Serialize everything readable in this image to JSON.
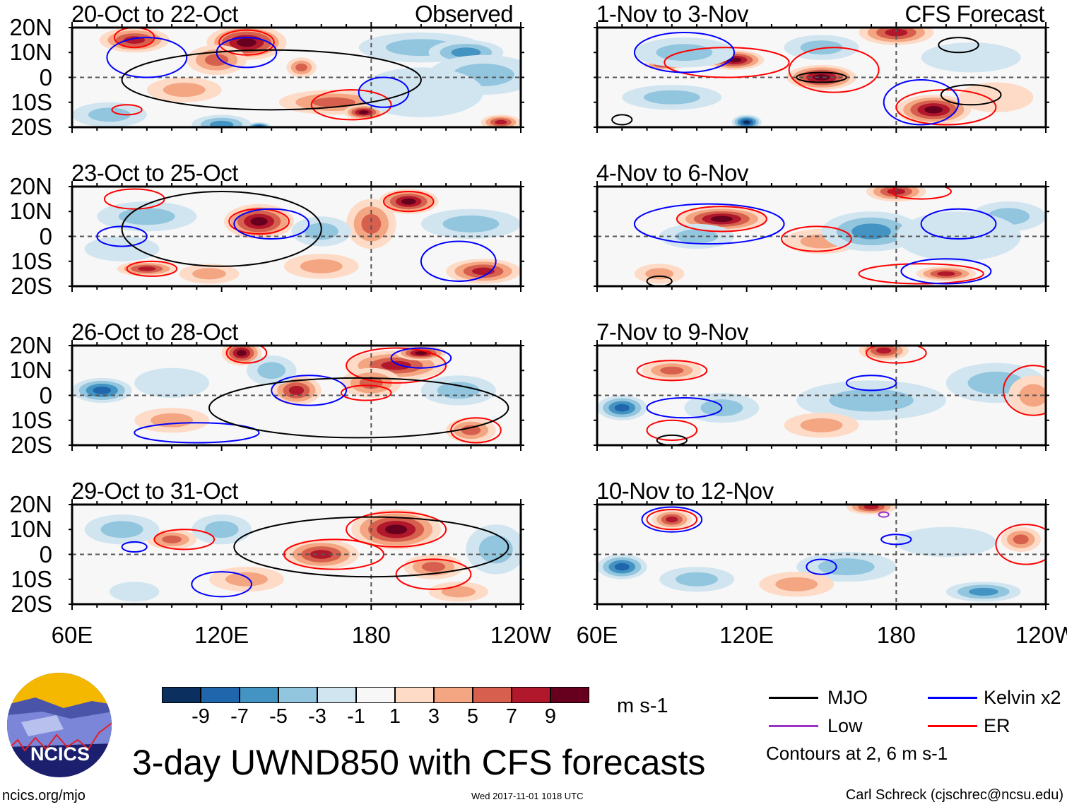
{
  "header": {
    "observed_label": "Observed",
    "forecast_label": "CFS Forecast"
  },
  "lat_labels": [
    "20N",
    "10N",
    "0",
    "10S",
    "20S"
  ],
  "lon_labels": [
    "60E",
    "120E",
    "180",
    "120W"
  ],
  "lon_values": [
    60,
    120,
    180,
    240
  ],
  "panels": [
    {
      "title": "20-Oct to 22-Oct",
      "anomalies": [
        [
          85,
          15,
          14,
          5,
          7
        ],
        [
          130,
          14,
          16,
          7,
          9
        ],
        [
          118,
          7,
          12,
          6,
          5
        ],
        [
          152,
          4,
          6,
          4,
          5
        ],
        [
          165,
          -10,
          22,
          5,
          5
        ],
        [
          177,
          -14,
          8,
          3,
          9
        ],
        [
          232,
          -18,
          8,
          3,
          7
        ],
        [
          200,
          12,
          25,
          6,
          -3
        ],
        [
          218,
          10,
          15,
          5,
          -5
        ],
        [
          225,
          1,
          22,
          8,
          -3
        ],
        [
          75,
          -15,
          15,
          5,
          -3
        ],
        [
          120,
          -19,
          12,
          4,
          -5
        ],
        [
          135,
          -20,
          5,
          2,
          -9
        ],
        [
          200,
          -6,
          25,
          10,
          -1
        ],
        [
          105,
          -5,
          15,
          5,
          3
        ]
      ],
      "contours": [
        [
          "ER",
          130,
          14,
          11,
          5
        ],
        [
          "ER",
          85,
          16,
          8,
          4
        ],
        [
          "ER",
          82,
          -13,
          6,
          2
        ],
        [
          "ER",
          172,
          -11,
          16,
          6
        ],
        [
          "Kelvin",
          90,
          8,
          16,
          8
        ],
        [
          "Kelvin",
          130,
          10,
          12,
          6
        ],
        [
          "Kelvin",
          185,
          -6,
          10,
          6
        ],
        [
          "MJO",
          140,
          -1,
          60,
          12
        ]
      ]
    },
    {
      "title": "1-Nov to 3-Nov",
      "anomalies": [
        [
          115,
          7,
          12,
          4,
          9
        ],
        [
          87,
          5,
          8,
          2,
          7
        ],
        [
          150,
          0,
          14,
          5,
          9
        ],
        [
          180,
          18,
          15,
          5,
          7
        ],
        [
          195,
          -13,
          15,
          6,
          9
        ],
        [
          120,
          -18,
          6,
          3,
          -9
        ],
        [
          95,
          10,
          20,
          6,
          -3
        ],
        [
          150,
          12,
          15,
          5,
          -3
        ],
        [
          220,
          -8,
          15,
          6,
          1
        ],
        [
          210,
          8,
          20,
          6,
          -1
        ],
        [
          90,
          -8,
          20,
          5,
          -3
        ]
      ],
      "contours": [
        [
          "ER",
          112,
          6,
          25,
          6
        ],
        [
          "ER",
          155,
          3,
          18,
          9
        ],
        [
          "ER",
          200,
          -12,
          20,
          7
        ],
        [
          "Kelvin",
          95,
          10,
          20,
          8
        ],
        [
          "Kelvin",
          190,
          -10,
          15,
          9
        ],
        [
          "MJO",
          150,
          0,
          10,
          2
        ],
        [
          "MJO",
          210,
          -7,
          12,
          4
        ],
        [
          "MJO",
          205,
          13,
          8,
          3
        ],
        [
          "MJO",
          70,
          -17,
          4,
          2
        ]
      ]
    },
    {
      "title": "23-Oct to 25-Oct",
      "anomalies": [
        [
          135,
          6,
          14,
          7,
          9
        ],
        [
          195,
          14,
          12,
          5,
          9
        ],
        [
          180,
          5,
          10,
          10,
          5
        ],
        [
          90,
          -13,
          12,
          3,
          7
        ],
        [
          225,
          -14,
          15,
          5,
          7
        ],
        [
          160,
          -12,
          15,
          5,
          3
        ],
        [
          90,
          8,
          20,
          6,
          -3
        ],
        [
          160,
          2,
          12,
          6,
          -3
        ],
        [
          220,
          5,
          20,
          6,
          -3
        ],
        [
          80,
          -5,
          15,
          5,
          -1
        ],
        [
          115,
          -15,
          12,
          4,
          3
        ]
      ],
      "contours": [
        [
          "ER",
          135,
          6,
          12,
          5
        ],
        [
          "ER",
          195,
          14,
          10,
          4
        ],
        [
          "ER",
          92,
          -13,
          10,
          3
        ],
        [
          "ER",
          85,
          15,
          12,
          4
        ],
        [
          "Kelvin",
          140,
          5,
          15,
          6
        ],
        [
          "Kelvin",
          80,
          0,
          10,
          4
        ],
        [
          "Kelvin",
          215,
          -10,
          15,
          8
        ],
        [
          "MJO",
          120,
          3,
          40,
          15
        ]
      ]
    },
    {
      "title": "4-Nov to 6-Nov",
      "anomalies": [
        [
          110,
          7,
          18,
          5,
          9
        ],
        [
          180,
          18,
          12,
          4,
          7
        ],
        [
          200,
          -15,
          12,
          3,
          7
        ],
        [
          85,
          -15,
          10,
          4,
          3
        ],
        [
          150,
          -2,
          15,
          5,
          3
        ],
        [
          100,
          0,
          15,
          5,
          -3
        ],
        [
          170,
          2,
          20,
          8,
          -5
        ],
        [
          225,
          8,
          15,
          6,
          -3
        ],
        [
          205,
          0,
          25,
          10,
          -1
        ]
      ],
      "contours": [
        [
          "ER",
          110,
          7,
          18,
          5
        ],
        [
          "ER",
          148,
          -1,
          14,
          5
        ],
        [
          "ER",
          190,
          18,
          12,
          3
        ],
        [
          "ER",
          190,
          -15,
          25,
          4
        ],
        [
          "Kelvin",
          105,
          5,
          30,
          8
        ],
        [
          "Kelvin",
          200,
          -14,
          18,
          5
        ],
        [
          "Kelvin",
          205,
          5,
          15,
          6
        ],
        [
          "MJO",
          85,
          -18,
          5,
          2
        ]
      ]
    },
    {
      "title": "26-Oct to 28-Oct",
      "anomalies": [
        [
          128,
          17,
          8,
          5,
          9
        ],
        [
          150,
          2,
          10,
          6,
          7
        ],
        [
          190,
          12,
          20,
          6,
          7
        ],
        [
          200,
          17,
          10,
          3,
          9
        ],
        [
          180,
          5,
          12,
          6,
          5
        ],
        [
          220,
          -14,
          10,
          5,
          5
        ],
        [
          72,
          2,
          12,
          5,
          -7
        ],
        [
          140,
          10,
          10,
          6,
          -3
        ],
        [
          100,
          -10,
          15,
          5,
          3
        ],
        [
          215,
          2,
          15,
          6,
          -3
        ],
        [
          100,
          5,
          15,
          6,
          -1
        ]
      ],
      "contours": [
        [
          "ER",
          130,
          17,
          8,
          4
        ],
        [
          "ER",
          190,
          12,
          20,
          7
        ],
        [
          "ER",
          178,
          1,
          10,
          3
        ],
        [
          "ER",
          222,
          -14,
          10,
          5
        ],
        [
          "Kelvin",
          155,
          2,
          15,
          6
        ],
        [
          "Kelvin",
          200,
          15,
          12,
          4
        ],
        [
          "Kelvin",
          110,
          -15,
          25,
          4
        ],
        [
          "MJO",
          175,
          -5,
          60,
          12
        ]
      ]
    },
    {
      "title": "7-Nov to 9-Nov",
      "anomalies": [
        [
          175,
          18,
          10,
          4,
          7
        ],
        [
          90,
          10,
          12,
          4,
          5
        ],
        [
          70,
          -5,
          10,
          5,
          -7
        ],
        [
          110,
          -5,
          15,
          6,
          -3
        ],
        [
          170,
          -2,
          30,
          8,
          -3
        ],
        [
          220,
          5,
          20,
          8,
          -3
        ],
        [
          150,
          -12,
          15,
          5,
          3
        ],
        [
          235,
          0,
          10,
          8,
          3
        ]
      ],
      "contours": [
        [
          "ER",
          90,
          10,
          14,
          4
        ],
        [
          "ER",
          180,
          17,
          12,
          4
        ],
        [
          "ER",
          235,
          2,
          12,
          10
        ],
        [
          "ER",
          90,
          -14,
          10,
          4
        ],
        [
          "Kelvin",
          170,
          5,
          10,
          3
        ],
        [
          "Kelvin",
          95,
          -5,
          15,
          4
        ],
        [
          "MJO",
          90,
          -18,
          6,
          2
        ]
      ]
    },
    {
      "title": "29-Oct to 31-Oct",
      "anomalies": [
        [
          190,
          10,
          18,
          8,
          9
        ],
        [
          160,
          0,
          15,
          6,
          7
        ],
        [
          100,
          6,
          10,
          4,
          5
        ],
        [
          205,
          -5,
          12,
          5,
          5
        ],
        [
          80,
          10,
          15,
          6,
          -3
        ],
        [
          120,
          10,
          12,
          6,
          -3
        ],
        [
          230,
          2,
          12,
          10,
          -3
        ],
        [
          130,
          -10,
          15,
          5,
          3
        ],
        [
          215,
          -15,
          12,
          4,
          3
        ],
        [
          85,
          -15,
          10,
          4,
          -1
        ]
      ],
      "contours": [
        [
          "ER",
          105,
          6,
          12,
          4
        ],
        [
          "ER",
          165,
          0,
          20,
          6
        ],
        [
          "ER",
          190,
          10,
          20,
          7
        ],
        [
          "ER",
          205,
          -8,
          15,
          6
        ],
        [
          "Kelvin",
          120,
          -12,
          12,
          5
        ],
        [
          "Kelvin",
          85,
          3,
          5,
          2
        ],
        [
          "MJO",
          180,
          3,
          55,
          12
        ]
      ]
    },
    {
      "title": "10-Nov to 12-Nov",
      "anomalies": [
        [
          90,
          14,
          8,
          4,
          7
        ],
        [
          170,
          19,
          10,
          3,
          7
        ],
        [
          230,
          6,
          8,
          5,
          5
        ],
        [
          70,
          -5,
          10,
          5,
          -7
        ],
        [
          100,
          -10,
          15,
          5,
          -3
        ],
        [
          160,
          -5,
          20,
          6,
          -3
        ],
        [
          215,
          -15,
          15,
          4,
          -5
        ],
        [
          140,
          -12,
          15,
          5,
          3
        ],
        [
          200,
          5,
          20,
          6,
          -1
        ]
      ],
      "contours": [
        [
          "ER",
          90,
          14,
          10,
          4
        ],
        [
          "ER",
          232,
          4,
          12,
          8
        ],
        [
          "Kelvin",
          90,
          14,
          12,
          5
        ],
        [
          "Kelvin",
          150,
          -5,
          6,
          3
        ],
        [
          "Kelvin",
          180,
          6,
          6,
          2
        ],
        [
          "Low",
          175,
          16,
          2,
          1
        ]
      ]
    }
  ],
  "colorbar": {
    "colors": [
      "#0b2f5f",
      "#2066ac",
      "#4393c3",
      "#92c5de",
      "#d1e5f0",
      "#f7f7f7",
      "#fddbc7",
      "#f4a582",
      "#d6604d",
      "#b2182b",
      "#67001f"
    ],
    "labels": [
      "-9",
      "-7",
      "-5",
      "-3",
      "-1",
      "1",
      "3",
      "5",
      "7",
      "9"
    ],
    "units": "m s-1"
  },
  "legend": {
    "items": [
      {
        "label": "MJO",
        "color": "#000000"
      },
      {
        "label": "Kelvin x2",
        "color": "#0000ff"
      },
      {
        "label": "Low",
        "color": "#9933cc"
      },
      {
        "label": "ER",
        "color": "#ff0000"
      }
    ],
    "contours_note": "Contours at 2, 6 m s-1"
  },
  "footer": {
    "title": "3-day UWND850 with CFS forecasts",
    "url": "ncics.org/mjo",
    "timestamp": "Wed 2017-11-01 1018 UTC",
    "credit": "Carl Schreck (cjschrec@ncsu.edu)",
    "logo_text": "NCICS"
  }
}
